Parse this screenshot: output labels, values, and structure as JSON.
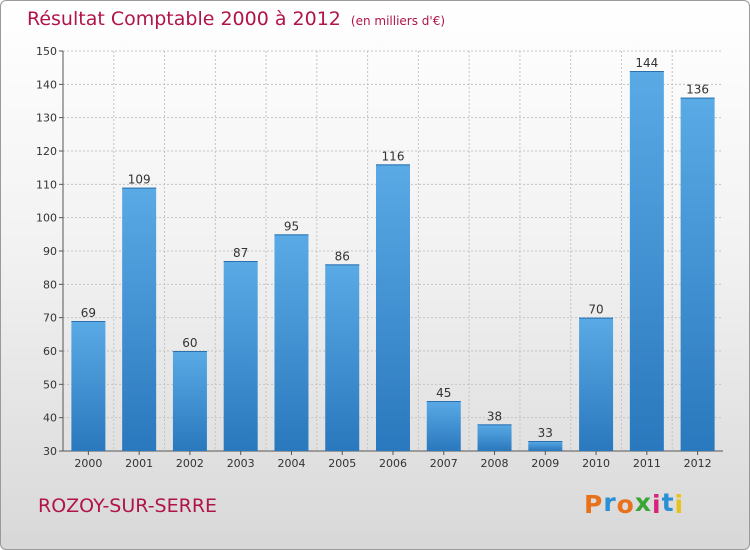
{
  "header": {
    "title": "Résultat Comptable 2000 à 2012",
    "subtitle": "(en milliers d'€)"
  },
  "footer": {
    "town": "ROZOY-SUR-SERRE",
    "logo_text": "Proxiti"
  },
  "colors": {
    "title": "#b0144a",
    "bar_light": "#5aaae6",
    "bar_dark": "#2a78bd",
    "logo_letters": [
      "#e8721c",
      "#2b8fd6",
      "#e8721c",
      "#3aa635",
      "#d8237c",
      "#2b8fd6",
      "#e8c21c"
    ]
  },
  "chart_data": {
    "type": "bar",
    "title": "Résultat Comptable 2000 à 2012",
    "subtitle": "(en milliers d'€)",
    "categories": [
      "2000",
      "2001",
      "2002",
      "2003",
      "2004",
      "2005",
      "2006",
      "2007",
      "2008",
      "2009",
      "2010",
      "2011",
      "2012"
    ],
    "values": [
      69,
      109,
      60,
      87,
      95,
      86,
      116,
      45,
      38,
      33,
      70,
      144,
      136
    ],
    "ylim": [
      30,
      150
    ],
    "yticks": [
      30,
      40,
      50,
      60,
      70,
      80,
      90,
      100,
      110,
      120,
      130,
      140,
      150
    ],
    "grid": true,
    "data_labels": true
  }
}
